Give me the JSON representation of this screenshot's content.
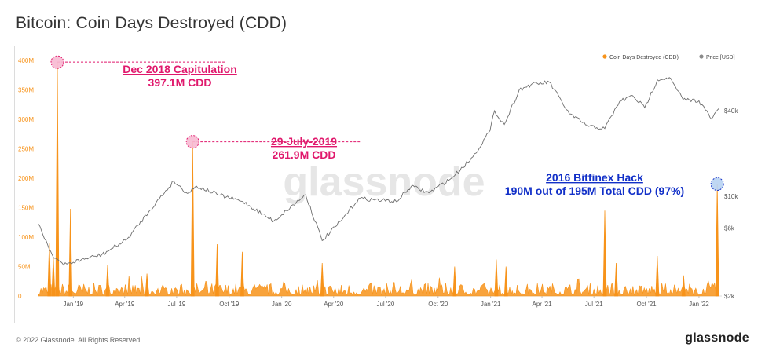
{
  "title": "Bitcoin: Coin Days Destroyed (CDD)",
  "footer": {
    "copyright": "© 2022 Glassnode. All Rights Reserved.",
    "brand": "glassnode"
  },
  "watermark": "glassnode",
  "colors": {
    "cdd": "#f7931a",
    "price": "#6e6e6e",
    "pink": "#e0186c",
    "blue": "#1230c8",
    "bitfinex_marker": "#b8d3f2"
  },
  "chart_data": {
    "type": "bar",
    "title": "Bitcoin: Coin Days Destroyed (CDD)",
    "legend": {
      "placement": "top-right",
      "items": [
        "Coin Days Destroyed (CDD)",
        "Price [USD]"
      ]
    },
    "grid": false,
    "x_ticks": [
      "Jan '19",
      "Apr '19",
      "Jul '19",
      "Oct '19",
      "Jan '20",
      "Apr '20",
      "Jul '20",
      "Oct '20",
      "Jan '21",
      "Apr '21",
      "Jul '21",
      "Oct '21",
      "Jan '22"
    ],
    "y_left": {
      "ticks": [
        "0",
        "50M",
        "100M",
        "150M",
        "200M",
        "250M",
        "300M",
        "350M",
        "400M"
      ],
      "range": [
        0,
        400
      ]
    },
    "y_right": {
      "scale": "log",
      "ticks": [
        "$2k",
        "$6k",
        "$10k",
        "$40k"
      ]
    },
    "series": [
      {
        "name": "Coin Days Destroyed (CDD)",
        "unit": "M",
        "spikes": [
          {
            "date": "2018-11-20",
            "value": 90
          },
          {
            "date": "2018-11-27",
            "value": 65
          },
          {
            "date": "2018-12-04",
            "value": 397.1
          },
          {
            "date": "2018-12-27",
            "value": 148
          },
          {
            "date": "2019-03-02",
            "value": 52
          },
          {
            "date": "2019-05-10",
            "value": 38
          },
          {
            "date": "2019-07-29",
            "value": 261.9
          },
          {
            "date": "2019-09-10",
            "value": 88
          },
          {
            "date": "2019-10-24",
            "value": 75
          },
          {
            "date": "2020-03-12",
            "value": 56
          },
          {
            "date": "2020-10-30",
            "value": 50
          },
          {
            "date": "2021-01-11",
            "value": 62
          },
          {
            "date": "2021-01-28",
            "value": 50
          },
          {
            "date": "2021-07-20",
            "value": 145
          },
          {
            "date": "2021-08-09",
            "value": 56
          },
          {
            "date": "2021-10-20",
            "value": 68
          },
          {
            "date": "2021-12-05",
            "value": 35
          },
          {
            "date": "2022-02-02",
            "value": 190
          }
        ],
        "baseline_range_M": [
          2,
          25
        ]
      },
      {
        "name": "Price [USD]",
        "points": [
          {
            "date": "2018-11-01",
            "value": 6400
          },
          {
            "date": "2018-11-25",
            "value": 3900
          },
          {
            "date": "2018-12-15",
            "value": 3300
          },
          {
            "date": "2019-01-15",
            "value": 3600
          },
          {
            "date": "2019-02-20",
            "value": 3900
          },
          {
            "date": "2019-04-05",
            "value": 5000
          },
          {
            "date": "2019-05-15",
            "value": 8000
          },
          {
            "date": "2019-06-26",
            "value": 12800
          },
          {
            "date": "2019-07-20",
            "value": 10500
          },
          {
            "date": "2019-08-05",
            "value": 11800
          },
          {
            "date": "2019-09-15",
            "value": 10200
          },
          {
            "date": "2019-10-25",
            "value": 9200
          },
          {
            "date": "2019-12-18",
            "value": 6700
          },
          {
            "date": "2020-02-12",
            "value": 10300
          },
          {
            "date": "2020-03-12",
            "value": 4900
          },
          {
            "date": "2020-04-15",
            "value": 6800
          },
          {
            "date": "2020-05-15",
            "value": 9700
          },
          {
            "date": "2020-07-20",
            "value": 9200
          },
          {
            "date": "2020-08-15",
            "value": 11800
          },
          {
            "date": "2020-09-15",
            "value": 10600
          },
          {
            "date": "2020-10-25",
            "value": 13500
          },
          {
            "date": "2020-12-01",
            "value": 19000
          },
          {
            "date": "2020-12-31",
            "value": 29000
          },
          {
            "date": "2021-01-08",
            "value": 40000
          },
          {
            "date": "2021-01-25",
            "value": 32000
          },
          {
            "date": "2021-02-20",
            "value": 56000
          },
          {
            "date": "2021-03-13",
            "value": 61000
          },
          {
            "date": "2021-04-14",
            "value": 63500
          },
          {
            "date": "2021-05-19",
            "value": 38000
          },
          {
            "date": "2021-06-22",
            "value": 31000
          },
          {
            "date": "2021-07-20",
            "value": 30000
          },
          {
            "date": "2021-08-15",
            "value": 46500
          },
          {
            "date": "2021-09-07",
            "value": 51000
          },
          {
            "date": "2021-09-28",
            "value": 42000
          },
          {
            "date": "2021-10-20",
            "value": 66000
          },
          {
            "date": "2021-11-10",
            "value": 68500
          },
          {
            "date": "2021-12-04",
            "value": 48000
          },
          {
            "date": "2022-01-01",
            "value": 47000
          },
          {
            "date": "2022-01-23",
            "value": 35000
          },
          {
            "date": "2022-02-05",
            "value": 41500
          }
        ]
      }
    ],
    "annotations": [
      {
        "title": "Dec 2018 Capitulation",
        "subtitle": "397.1M CDD",
        "date": "2018-12-04",
        "value": 397.1,
        "color": "pink"
      },
      {
        "title": "29-July-2019",
        "subtitle": "261.9M CDD",
        "date": "2019-07-29",
        "value": 261.9,
        "color": "pink"
      },
      {
        "title": "2016 Bitfinex Hack",
        "subtitle": "190M out of 195M Total CDD (97%)",
        "date": "2022-02-02",
        "value": 190,
        "color": "blue"
      }
    ]
  }
}
